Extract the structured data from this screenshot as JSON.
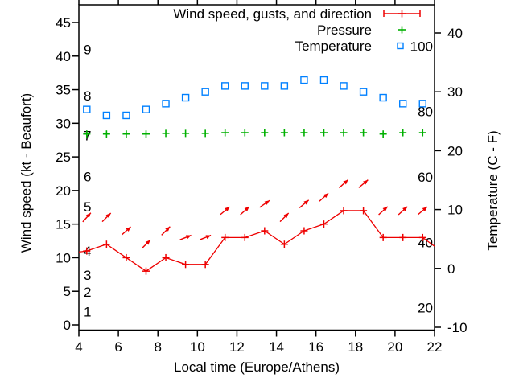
{
  "figure": {
    "background": "#ffffff",
    "text_color": "#000000",
    "border_color": "#000000"
  },
  "chart_data": {
    "type": "line",
    "title": "",
    "xlabel": "Local time (Europe/Athens)",
    "ylabel_left": "Wind speed (kt - Beaufort)",
    "ylabel_right": "Temperature (C - F)",
    "xlim": [
      4,
      22
    ],
    "x_ticks": [
      4,
      6,
      8,
      10,
      12,
      14,
      16,
      18,
      20,
      22
    ],
    "ylim_left": [
      0,
      45
    ],
    "y_ticks_left": [
      0,
      5,
      10,
      15,
      20,
      25,
      30,
      35,
      40,
      45
    ],
    "ylim_right": [
      -10,
      40
    ],
    "y_ticks_right": [
      -10,
      0,
      10,
      20,
      30,
      40
    ],
    "grid": false,
    "legend_position": "top-right",
    "beaufort_scale_labels": [
      {
        "label": "9",
        "kt": 41.0
      },
      {
        "label": "8",
        "kt": 34.1
      },
      {
        "label": "7",
        "kt": 28.2
      },
      {
        "label": "6",
        "kt": 22.1
      },
      {
        "label": "5",
        "kt": 17.6
      },
      {
        "label": "4",
        "kt": 11.0
      },
      {
        "label": "3",
        "kt": 7.4
      },
      {
        "label": "2",
        "kt": 4.9
      },
      {
        "label": "1",
        "kt": 2.0
      }
    ],
    "fahrenheit_scale_labels": [
      {
        "label": "100",
        "f": 100
      },
      {
        "label": "80",
        "f": 80
      },
      {
        "label": "60",
        "f": 60
      },
      {
        "label": "40",
        "f": 40
      },
      {
        "label": "20",
        "f": 20
      }
    ],
    "x_hours": [
      4.4,
      5.4,
      6.4,
      7.4,
      8.4,
      9.4,
      10.4,
      11.4,
      12.4,
      13.4,
      14.4,
      15.4,
      16.4,
      17.4,
      18.4,
      19.4,
      20.4,
      21.4
    ],
    "series": [
      {
        "name": "Wind speed, gusts, and direction",
        "color": "#ee0000",
        "marker": "plus",
        "wind_kt": [
          11,
          12,
          10,
          8,
          10,
          9,
          9,
          13,
          13,
          14,
          12,
          14,
          15,
          17,
          17,
          13,
          13,
          13
        ],
        "gust_kt": [
          16,
          16,
          14,
          12,
          14,
          13,
          13,
          17,
          17,
          18,
          16,
          18,
          19,
          21,
          21,
          17,
          17,
          17
        ],
        "gust_arrow_angle_deg": [
          48,
          45,
          42,
          45,
          45,
          22,
          22,
          40,
          42,
          35,
          45,
          40,
          42,
          42,
          40,
          42,
          42,
          40
        ],
        "edge_left": {
          "x_hour": 4.0,
          "kt": 10.85
        },
        "edge_right": {
          "x_hour": 22.0,
          "kt": 11.7
        }
      },
      {
        "name": "Pressure",
        "color": "#00b000",
        "marker": "plus",
        "values_left_axis_equiv_kt": [
          28.4,
          28.4,
          28.4,
          28.4,
          28.5,
          28.5,
          28.5,
          28.6,
          28.6,
          28.6,
          28.6,
          28.6,
          28.6,
          28.6,
          28.6,
          28.4,
          28.6,
          28.6
        ]
      },
      {
        "name": "Temperature",
        "color": "#0080ff",
        "marker": "open-square",
        "values_c": [
          27,
          26,
          26,
          27,
          28,
          29,
          30,
          31,
          31,
          31,
          31,
          32,
          32,
          31,
          30,
          29,
          28,
          28
        ]
      }
    ]
  }
}
